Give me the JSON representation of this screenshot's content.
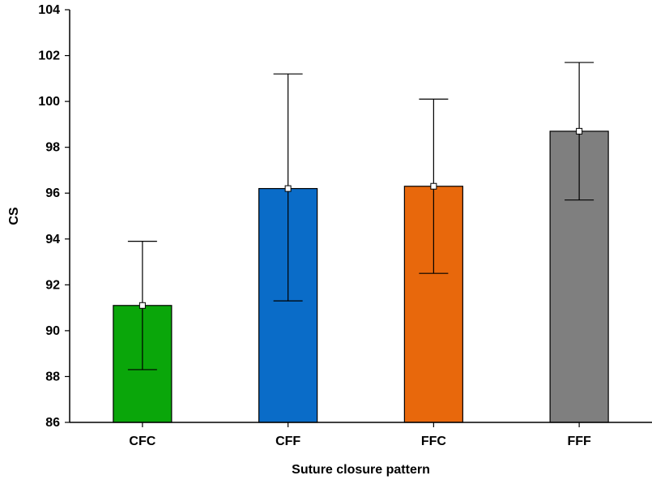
{
  "chart_data": {
    "type": "bar",
    "title": "",
    "xlabel": "Suture closure pattern",
    "ylabel": "CS",
    "ylim": [
      86,
      104
    ],
    "yticks": [
      86,
      88,
      90,
      92,
      94,
      96,
      98,
      100,
      102,
      104
    ],
    "grid": false,
    "categories": [
      "CFC",
      "CFF",
      "FFC",
      "FFF"
    ],
    "values": [
      91.1,
      96.2,
      96.3,
      98.7
    ],
    "error_low": [
      88.3,
      91.3,
      92.5,
      95.7
    ],
    "error_high": [
      93.9,
      101.2,
      100.1,
      101.7
    ],
    "colors": [
      "#0aa60a",
      "#0a6cc8",
      "#e8680c",
      "#7f7f7f"
    ],
    "marker": "white-square"
  }
}
